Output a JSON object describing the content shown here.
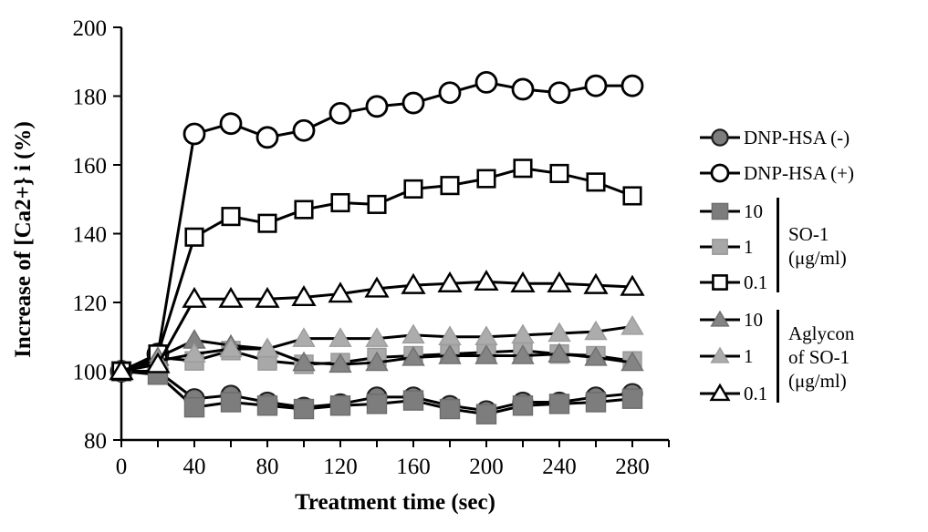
{
  "figure": {
    "y_axis_title": "Increase of [Ca2+} i (%)",
    "x_axis_title": "Treatment time (sec)"
  },
  "legend": {
    "items": [
      {
        "label": "DNP-HSA (-)",
        "marker": "circle-dark"
      },
      {
        "label": "DNP-HSA (+)",
        "marker": "circle-open"
      },
      {
        "label": "10",
        "marker": "square-dark"
      },
      {
        "label": "1",
        "marker": "square-light"
      },
      {
        "label": "0.1",
        "marker": "square-open"
      },
      {
        "label": "10",
        "marker": "triangle-dark"
      },
      {
        "label": "1",
        "marker": "triangle-light"
      },
      {
        "label": "0.1",
        "marker": "triangle-open"
      }
    ],
    "groups": [
      {
        "label_lines": [
          "SO-1",
          "(μg/ml)"
        ]
      },
      {
        "label_lines": [
          "Aglycon",
          "of SO-1",
          "(μg/ml)"
        ]
      }
    ]
  },
  "colors": {
    "line": "#000000",
    "dark_gray": "#7d7d7d",
    "light_gray": "#a8a8a8",
    "dark_tri": "#848484",
    "light_tri": "#acacac",
    "open_fill": "#ffffff"
  },
  "chart_data": {
    "type": "line",
    "title": "",
    "xlabel": "Treatment time (sec)",
    "ylabel": "Increase of [Ca2+} i (%)",
    "xlim": [
      0,
      300
    ],
    "ylim": [
      80,
      200
    ],
    "x_tick_step": 20,
    "x_tick_labels": [
      "0",
      "40",
      "80",
      "120",
      "160",
      "200",
      "240",
      "280"
    ],
    "y_ticks": [
      80,
      100,
      120,
      140,
      160,
      180,
      200
    ],
    "grid": false,
    "legend_position": "right",
    "x": [
      0,
      20,
      40,
      60,
      80,
      100,
      120,
      140,
      160,
      180,
      200,
      220,
      240,
      260,
      280
    ],
    "series": [
      {
        "name": "DNP-HSA (-)",
        "marker": "circle-dark",
        "values": [
          100,
          100,
          92,
          93,
          91,
          89.5,
          90.5,
          92.5,
          92.5,
          90,
          88.5,
          91,
          91,
          92.5,
          93.5
        ]
      },
      {
        "name": "DNP-HSA (+)",
        "marker": "circle-open",
        "values": [
          100,
          105,
          169,
          172,
          168,
          170,
          175,
          177,
          178,
          181,
          184,
          182,
          181,
          183,
          183
        ]
      },
      {
        "name": "SO-1 10 μg/ml",
        "marker": "square-dark",
        "values": [
          100,
          99,
          89.5,
          91,
          90,
          89,
          90,
          90.5,
          91.5,
          89,
          87.5,
          90,
          90.5,
          91,
          92
        ]
      },
      {
        "name": "SO-1 1 μg/ml",
        "marker": "square-light",
        "values": [
          100,
          104,
          103,
          106,
          103,
          102,
          102.5,
          104,
          104.5,
          105,
          105.5,
          106,
          105,
          104.5,
          103
        ]
      },
      {
        "name": "SO-1 0.1 μg/ml",
        "marker": "square-open",
        "values": [
          100,
          105,
          139,
          145,
          143,
          147,
          149,
          148.5,
          153,
          154,
          156,
          159,
          157.5,
          155,
          151
        ]
      },
      {
        "name": "Aglycon of SO-1 10 μg/ml",
        "marker": "triangle-dark",
        "values": [
          100,
          104,
          109,
          107.5,
          106.5,
          102.5,
          102,
          102.5,
          104,
          104.5,
          104.5,
          104.5,
          105,
          104,
          102.5
        ]
      },
      {
        "name": "Aglycon of SO-1 1 μg/ml",
        "marker": "triangle-light",
        "values": [
          100,
          103,
          105,
          106.5,
          106.5,
          109.5,
          109.5,
          109.5,
          110.5,
          110,
          110,
          110.5,
          111,
          111.5,
          113
        ]
      },
      {
        "name": "Aglycon of SO-1 0.1 μg/ml",
        "marker": "triangle-open",
        "values": [
          100,
          102,
          121,
          121,
          121,
          121.5,
          122.5,
          124,
          125,
          125.5,
          126,
          125.5,
          125.5,
          125,
          124.5
        ]
      }
    ]
  }
}
